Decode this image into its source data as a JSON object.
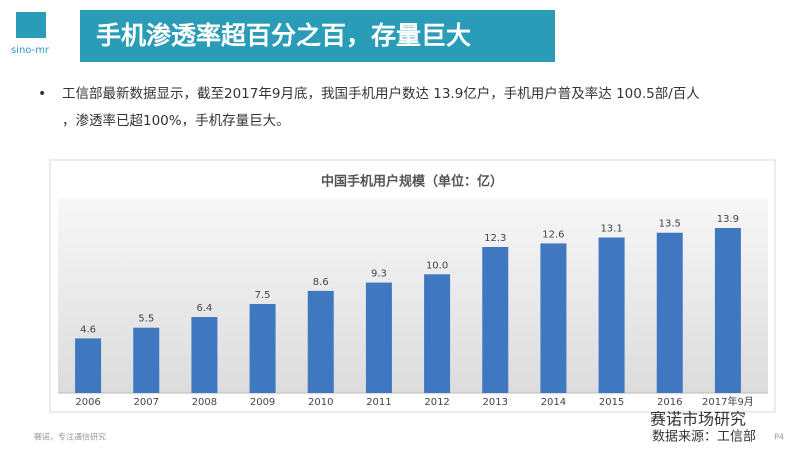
{
  "header": {
    "logo": "sino-mr",
    "title": "手机渗透率超百分之百，存量巨大"
  },
  "bullet": [
    "工信部最新数据显示，截至2017年9月底，我国手机用户数达 13.9亿户，手机用户普及率达 100.5部/百人",
    "，渗透率已超100%，手机存量巨大。"
  ],
  "chart_data": {
    "type": "bar",
    "title": "中国手机用户规模（单位：亿）",
    "categories": [
      "2006",
      "2007",
      "2008",
      "2009",
      "2010",
      "2011",
      "2012",
      "2013",
      "2014",
      "2015",
      "2016",
      "2017年9月"
    ],
    "values": [
      4.6,
      5.5,
      6.4,
      7.5,
      8.6,
      9.3,
      10,
      12.3,
      12.6,
      13.1,
      13.5,
      13.9
    ],
    "value_labels": [
      "4.6",
      "5.5",
      "6.4",
      "7.5",
      "8.6",
      "9.3",
      "10.0",
      "12.3",
      "12.6",
      "13.1",
      "13.5",
      "13.9"
    ],
    "color": "#3f78c0"
  },
  "footer": {
    "left": "赛诺，专注通信研究",
    "page": "P4",
    "watermark": "赛诺市场研究",
    "source": "数据来源：工信部"
  }
}
